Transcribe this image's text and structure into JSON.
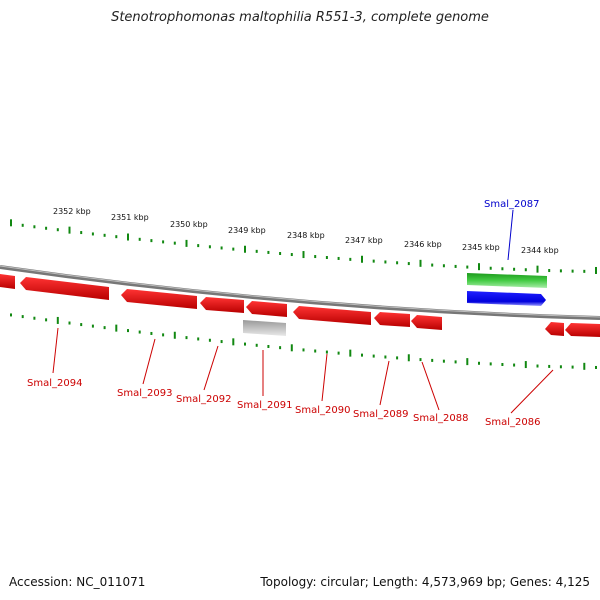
{
  "title": "Stenotrophomonas maltophilia R551-3, complete genome",
  "footer": {
    "accession": "Accession: NC_011071",
    "summary": "Topology: circular; Length: 4,573,969 bp; Genes: 4,125"
  },
  "colors": {
    "forward_gene": "#22aa22",
    "cds_forward": "#0000ee",
    "reverse_gene": "#ee0000",
    "pseudo_gene": "#b8b8b8",
    "tick": "#118811",
    "backbone": "#777777"
  },
  "scale_labels": [
    "2352 kbp",
    "2351 kbp",
    "2350 kbp",
    "2349 kbp",
    "2348 kbp",
    "2347 kbp",
    "2346 kbp",
    "2345 kbp",
    "2344 kbp"
  ],
  "genes": [
    {
      "id": "Smal_2094",
      "strand": "reverse",
      "color": "#cc0000"
    },
    {
      "id": "Smal_2093",
      "strand": "reverse",
      "color": "#cc0000"
    },
    {
      "id": "Smal_2092",
      "strand": "reverse",
      "color": "#cc0000"
    },
    {
      "id": "Smal_2091",
      "strand": "reverse",
      "color": "#cc0000"
    },
    {
      "id": "Smal_2090",
      "strand": "reverse",
      "color": "#cc0000"
    },
    {
      "id": "Smal_2089",
      "strand": "reverse",
      "color": "#cc0000"
    },
    {
      "id": "Smal_2088",
      "strand": "reverse",
      "color": "#cc0000"
    },
    {
      "id": "Smal_2087",
      "strand": "forward",
      "color": "#0000cc"
    },
    {
      "id": "Smal_2086",
      "strand": "reverse",
      "color": "#cc0000"
    }
  ]
}
